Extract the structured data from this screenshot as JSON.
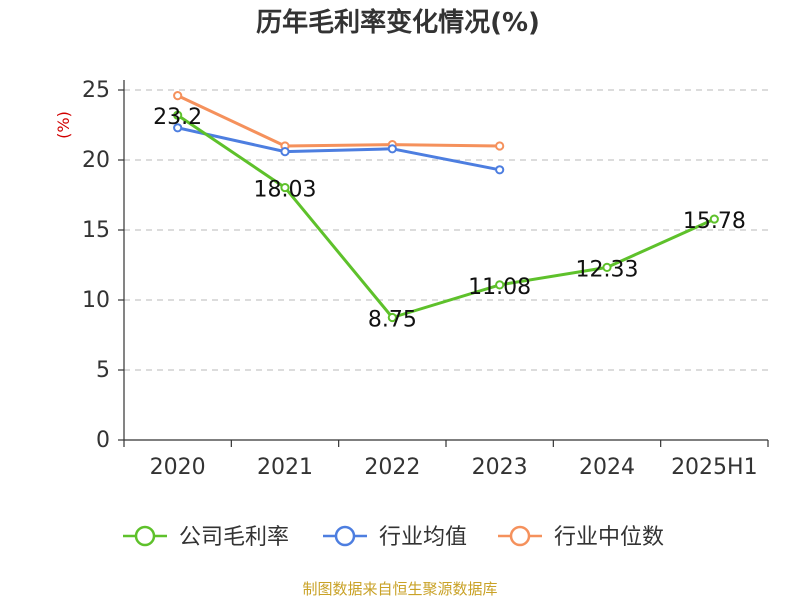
{
  "chart_data": {
    "type": "line",
    "title": "历年毛利率变化情况(%)",
    "ylabel": "(%)",
    "xlabel": "",
    "categories": [
      "2020",
      "2021",
      "2022",
      "2023",
      "2024",
      "2025H1"
    ],
    "ylim": [
      0,
      25
    ],
    "yticks": [
      0,
      5,
      10,
      15,
      20,
      25
    ],
    "grid": "horizontal-dashed",
    "legend_position": "bottom",
    "series": [
      {
        "name": "公司毛利率",
        "color": "#5ec12b",
        "values": [
          23.2,
          18.03,
          8.75,
          11.08,
          12.33,
          15.78
        ],
        "labels": [
          "23.2",
          "18.03",
          "8.75",
          "11.08",
          "12.33",
          "15.78"
        ]
      },
      {
        "name": "行业均值",
        "color": "#4d7ee0",
        "values": [
          22.3,
          20.6,
          20.8,
          19.3,
          null,
          null
        ]
      },
      {
        "name": "行业中位数",
        "color": "#f5915c",
        "values": [
          24.6,
          21.0,
          21.1,
          21.0,
          null,
          null
        ]
      }
    ],
    "source": "制图数据来自恒生聚源数据库"
  }
}
